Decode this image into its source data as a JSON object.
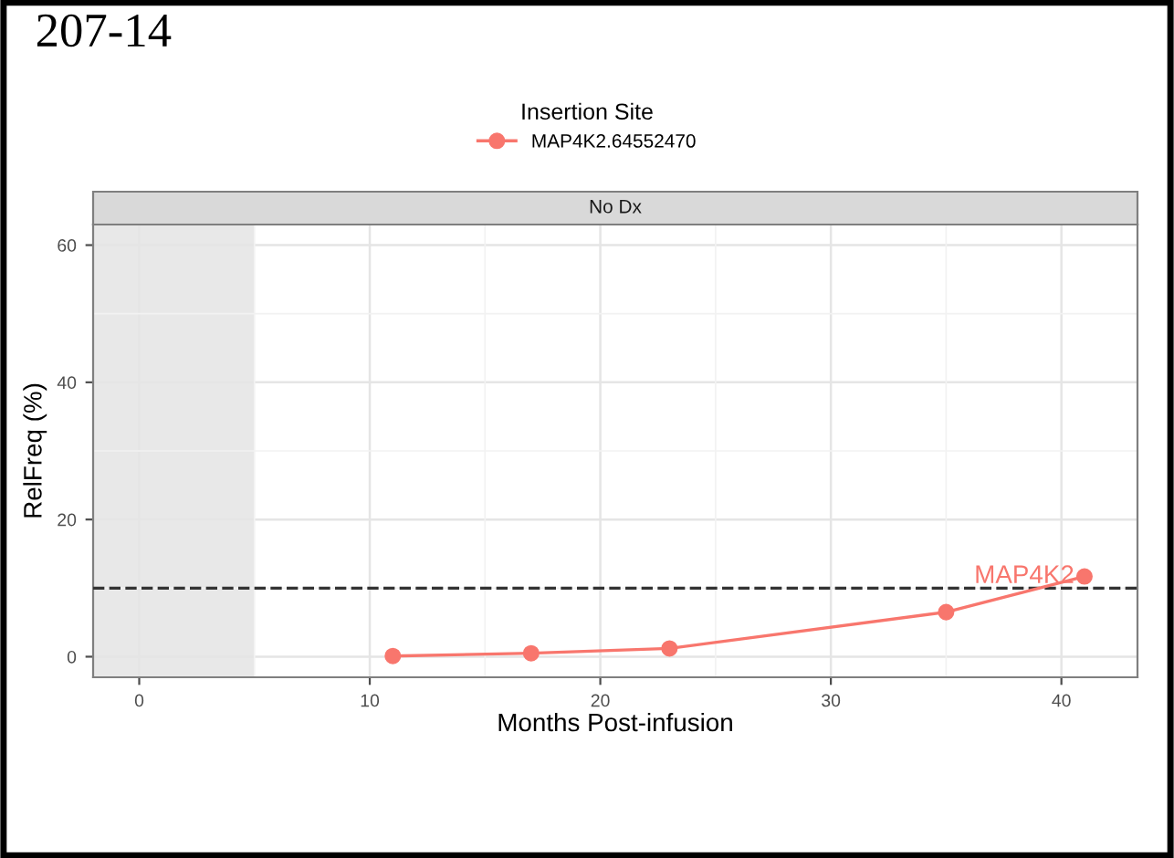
{
  "chart_data": {
    "type": "line",
    "title": "207-14",
    "subtitle": "No Dx",
    "xlabel": "Months Post-infusion",
    "ylabel": "RelFreq (%)",
    "legend_title": "Insertion Site",
    "x": [
      11,
      17,
      23,
      35,
      41
    ],
    "series": [
      {
        "name": "MAP4K2.64552470",
        "color": "#f8766d",
        "values": [
          0.1,
          0.5,
          1.2,
          6.5,
          11.7
        ]
      }
    ],
    "xlim": [
      -2,
      43.3
    ],
    "ylim": [
      -3,
      63
    ],
    "xticks": [
      0,
      10,
      20,
      30,
      40
    ],
    "yticks": [
      0,
      20,
      40,
      60
    ],
    "ref_lines": [
      {
        "axis": "y",
        "value": 10,
        "color": "#333333",
        "line_style": "dashed"
      }
    ],
    "bands": [
      {
        "axis": "x",
        "from": -2,
        "to": 5,
        "color": "#e8e8e8"
      }
    ],
    "annotations": [
      {
        "text": "MAP4K2",
        "x": 41,
        "y": 11.7
      }
    ],
    "grid": true,
    "legend": "top",
    "marker": "circle",
    "line_style": "solid"
  }
}
